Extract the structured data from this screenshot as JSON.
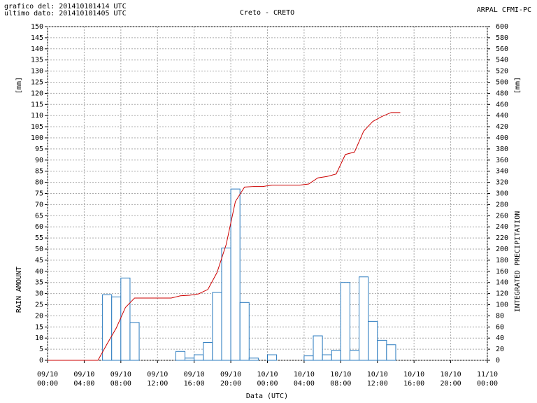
{
  "header": {
    "line1": "grafico del: 201410101414 UTC",
    "line2": "ultimo dato: 201410101405 UTC",
    "source": "ARPAL CFMI-PC"
  },
  "chart_data": {
    "type": "bar",
    "title": "Creto - CRETO",
    "x_label": "Data (UTC)",
    "y_label": "RAIN AMOUNT",
    "y_unit": "[mm]",
    "y2_label": "INTEGRATED PRECIPITATION",
    "y2_unit": "[mm]",
    "xlim": [
      0,
      48
    ],
    "ylim": [
      0,
      150
    ],
    "y2lim": [
      0,
      600
    ],
    "grid": true,
    "xticks": [
      {
        "value": 0,
        "label": "09/10\n00:00"
      },
      {
        "value": 4,
        "label": "09/10\n04:00"
      },
      {
        "value": 8,
        "label": "09/10\n08:00"
      },
      {
        "value": 12,
        "label": "09/10\n12:00"
      },
      {
        "value": 16,
        "label": "09/10\n16:00"
      },
      {
        "value": 20,
        "label": "09/10\n20:00"
      },
      {
        "value": 24,
        "label": "10/10\n00:00"
      },
      {
        "value": 28,
        "label": "10/10\n04:00"
      },
      {
        "value": 32,
        "label": "10/10\n08:00"
      },
      {
        "value": 36,
        "label": "10/10\n12:00"
      },
      {
        "value": 40,
        "label": "10/10\n16:00"
      },
      {
        "value": 44,
        "label": "10/10\n20:00"
      },
      {
        "value": 48,
        "label": "11/10\n00:00"
      }
    ],
    "yticks": [
      0,
      5,
      10,
      15,
      20,
      25,
      30,
      35,
      40,
      45,
      50,
      55,
      60,
      65,
      70,
      75,
      80,
      85,
      90,
      95,
      100,
      105,
      110,
      115,
      120,
      125,
      130,
      135,
      140,
      145,
      150
    ],
    "y2ticks": [
      0,
      20,
      40,
      60,
      80,
      100,
      120,
      140,
      160,
      180,
      200,
      220,
      240,
      260,
      280,
      300,
      320,
      340,
      360,
      380,
      400,
      420,
      440,
      460,
      480,
      500,
      520,
      540,
      560,
      580,
      600
    ],
    "series": [
      {
        "type": "bar",
        "color": "#2b7bbf",
        "bar_width": 1,
        "x": [
          0,
          1,
          2,
          3,
          4,
          5,
          6,
          7,
          8,
          9,
          10,
          11,
          12,
          13,
          14,
          15,
          16,
          17,
          18,
          19,
          20,
          21,
          22,
          23,
          24,
          25,
          26,
          27,
          28,
          29,
          30,
          31,
          32,
          33,
          34,
          35,
          36,
          37,
          38
        ],
        "values": [
          0,
          0,
          0,
          0,
          0,
          0,
          29.5,
          28.5,
          37,
          17,
          0,
          0,
          0,
          0,
          4,
          1,
          2.5,
          8,
          30.5,
          50.5,
          77,
          26,
          1,
          0,
          2.5,
          0,
          0,
          0,
          2,
          11,
          2.5,
          4.5,
          35,
          4.5,
          37.5,
          17.5,
          9,
          7,
          0
        ]
      },
      {
        "type": "line",
        "color": "#cc0000",
        "axis": "y2",
        "x": [
          0,
          0.5,
          1.5,
          2.5,
          3.5,
          4.5,
          5.5,
          6.5,
          7.5,
          8.5,
          9.5,
          10.5,
          11.5,
          12.5,
          13.5,
          14.5,
          15.5,
          16.5,
          17.5,
          18.5,
          19.5,
          20.5,
          21.5,
          22.5,
          23.5,
          24.5,
          25.5,
          26.5,
          27.5,
          28.5,
          29.5,
          30.5,
          31.5,
          32.5,
          33.5,
          34.5,
          35.5,
          36.5,
          37.5,
          38.5
        ],
        "values": [
          0,
          0,
          0,
          0,
          0,
          0,
          0,
          29.5,
          58,
          95,
          112,
          112,
          112,
          112,
          112,
          116,
          117,
          119.5,
          127.5,
          158,
          208.5,
          285.5,
          311.5,
          312.5,
          312.5,
          315,
          315,
          315,
          315,
          317,
          328,
          330.5,
          335,
          370,
          374.5,
          412,
          429.5,
          438.5,
          445.5,
          445.5
        ]
      }
    ]
  }
}
